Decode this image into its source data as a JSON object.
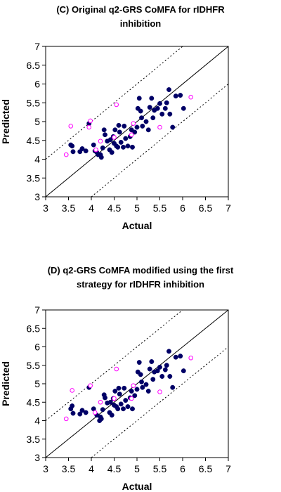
{
  "chart_data": [
    {
      "type": "scatter",
      "title": [
        "(C) Original q2-GRS CoMFA for rIDHFR",
        "inhibition"
      ],
      "xlabel": "Actual",
      "ylabel": "Predicted",
      "xlim": [
        3,
        7
      ],
      "ylim": [
        3,
        7
      ],
      "xticks": [
        "3",
        "3.5",
        "4",
        "4.5",
        "5",
        "5.5",
        "6",
        "6.5",
        "7"
      ],
      "yticks": [
        "3",
        "3.5",
        "4",
        "4.5",
        "5",
        "5.5",
        "6",
        "6.5",
        "7"
      ],
      "grid": false,
      "lines": [
        {
          "style": "solid",
          "points": [
            [
              3,
              3
            ],
            [
              7,
              7
            ]
          ]
        },
        {
          "style": "dotted",
          "points": [
            [
              3,
              4
            ],
            [
              6,
              7
            ]
          ]
        },
        {
          "style": "dotted",
          "points": [
            [
              4,
              3
            ],
            [
              7,
              6
            ]
          ]
        }
      ],
      "series": [
        {
          "marker": "filled-circle",
          "color": "#000066",
          "points": [
            [
              3.55,
              4.38
            ],
            [
              3.58,
              4.35
            ],
            [
              3.6,
              4.2
            ],
            [
              3.75,
              4.2
            ],
            [
              3.8,
              4.28
            ],
            [
              3.88,
              4.22
            ],
            [
              3.95,
              4.95
            ],
            [
              4.05,
              4.38
            ],
            [
              4.08,
              4.22
            ],
            [
              4.12,
              4.18
            ],
            [
              4.15,
              4.12
            ],
            [
              4.2,
              4.12
            ],
            [
              4.22,
              4.05
            ],
            [
              4.25,
              4.3
            ],
            [
              4.28,
              4.78
            ],
            [
              4.3,
              4.65
            ],
            [
              4.35,
              4.48
            ],
            [
              4.4,
              4.25
            ],
            [
              4.42,
              4.52
            ],
            [
              4.45,
              4.18
            ],
            [
              4.48,
              4.6
            ],
            [
              4.5,
              4.42
            ],
            [
              4.52,
              4.78
            ],
            [
              4.55,
              4.35
            ],
            [
              4.58,
              4.32
            ],
            [
              4.6,
              4.9
            ],
            [
              4.62,
              4.72
            ],
            [
              4.65,
              4.45
            ],
            [
              4.7,
              4.32
            ],
            [
              4.72,
              4.88
            ],
            [
              4.75,
              4.55
            ],
            [
              4.8,
              4.35
            ],
            [
              4.85,
              4.6
            ],
            [
              4.88,
              4.78
            ],
            [
              4.9,
              4.32
            ],
            [
              4.95,
              4.72
            ],
            [
              5.0,
              4.85
            ],
            [
              5.02,
              5.35
            ],
            [
              5.05,
              5.62
            ],
            [
              5.08,
              5.28
            ],
            [
              5.1,
              5.1
            ],
            [
              5.12,
              4.88
            ],
            [
              5.2,
              5.0
            ],
            [
              5.25,
              4.78
            ],
            [
              5.28,
              5.38
            ],
            [
              5.32,
              5.62
            ],
            [
              5.35,
              5.1
            ],
            [
              5.38,
              5.3
            ],
            [
              5.45,
              5.35
            ],
            [
              5.5,
              5.48
            ],
            [
              5.55,
              5.2
            ],
            [
              5.62,
              5.35
            ],
            [
              5.65,
              5.5
            ],
            [
              5.7,
              5.85
            ],
            [
              5.72,
              5.2
            ],
            [
              5.78,
              4.85
            ],
            [
              5.85,
              5.68
            ],
            [
              5.95,
              5.7
            ],
            [
              6.02,
              5.35
            ]
          ]
        },
        {
          "marker": "open-circle",
          "color": "#ff00ff",
          "points": [
            [
              3.45,
              4.12
            ],
            [
              3.55,
              4.88
            ],
            [
              3.95,
              4.85
            ],
            [
              3.98,
              5.02
            ],
            [
              4.1,
              4.25
            ],
            [
              4.2,
              4.48
            ],
            [
              4.5,
              4.58
            ],
            [
              4.55,
              5.45
            ],
            [
              4.88,
              4.65
            ],
            [
              4.92,
              4.95
            ],
            [
              5.5,
              4.85
            ],
            [
              6.18,
              5.65
            ]
          ]
        }
      ]
    },
    {
      "type": "scatter",
      "title": [
        "(D) q2-GRS CoMFA modified using the first",
        "strategy for rIDHFR inhibition"
      ],
      "xlabel": "Actual",
      "ylabel": "Predicted",
      "xlim": [
        3,
        7
      ],
      "ylim": [
        3,
        7
      ],
      "xticks": [
        "3",
        "3.5",
        "4",
        "4.5",
        "5",
        "5.5",
        "6",
        "6.5",
        "7"
      ],
      "yticks": [
        "3",
        "3.5",
        "4",
        "4.5",
        "5",
        "5.5",
        "6",
        "6.5",
        "7"
      ],
      "grid": false,
      "lines": [
        {
          "style": "solid",
          "points": [
            [
              3,
              3
            ],
            [
              7,
              7
            ]
          ]
        },
        {
          "style": "dotted",
          "points": [
            [
              3,
              4
            ],
            [
              6,
              7
            ]
          ]
        },
        {
          "style": "dotted",
          "points": [
            [
              4,
              3
            ],
            [
              7,
              6
            ]
          ]
        }
      ],
      "series": [
        {
          "marker": "filled-circle",
          "color": "#000066",
          "points": [
            [
              3.55,
              4.32
            ],
            [
              3.58,
              4.4
            ],
            [
              3.6,
              4.2
            ],
            [
              3.75,
              4.18
            ],
            [
              3.8,
              4.28
            ],
            [
              3.88,
              4.22
            ],
            [
              3.95,
              4.9
            ],
            [
              4.05,
              4.32
            ],
            [
              4.12,
              4.15
            ],
            [
              4.18,
              4.0
            ],
            [
              4.2,
              4.1
            ],
            [
              4.22,
              4.05
            ],
            [
              4.25,
              4.3
            ],
            [
              4.28,
              4.7
            ],
            [
              4.3,
              4.62
            ],
            [
              4.35,
              4.48
            ],
            [
              4.4,
              4.22
            ],
            [
              4.42,
              4.5
            ],
            [
              4.45,
              4.15
            ],
            [
              4.48,
              4.6
            ],
            [
              4.5,
              4.42
            ],
            [
              4.52,
              4.8
            ],
            [
              4.55,
              4.38
            ],
            [
              4.58,
              4.32
            ],
            [
              4.6,
              4.88
            ],
            [
              4.62,
              4.72
            ],
            [
              4.65,
              4.45
            ],
            [
              4.7,
              4.32
            ],
            [
              4.72,
              4.88
            ],
            [
              4.75,
              4.55
            ],
            [
              4.8,
              4.38
            ],
            [
              4.85,
              4.62
            ],
            [
              4.88,
              4.8
            ],
            [
              4.9,
              4.32
            ],
            [
              4.95,
              4.68
            ],
            [
              5.0,
              4.85
            ],
            [
              5.02,
              5.32
            ],
            [
              5.05,
              5.58
            ],
            [
              5.08,
              5.25
            ],
            [
              5.1,
              5.05
            ],
            [
              5.12,
              4.9
            ],
            [
              5.2,
              4.98
            ],
            [
              5.25,
              4.8
            ],
            [
              5.28,
              5.4
            ],
            [
              5.32,
              5.6
            ],
            [
              5.35,
              5.12
            ],
            [
              5.38,
              5.32
            ],
            [
              5.45,
              5.35
            ],
            [
              5.5,
              5.45
            ],
            [
              5.55,
              5.2
            ],
            [
              5.62,
              5.38
            ],
            [
              5.65,
              5.5
            ],
            [
              5.7,
              5.88
            ],
            [
              5.72,
              5.2
            ],
            [
              5.78,
              4.9
            ],
            [
              5.85,
              5.72
            ],
            [
              5.95,
              5.75
            ],
            [
              6.02,
              5.35
            ]
          ]
        },
        {
          "marker": "open-circle",
          "color": "#ff00ff",
          "points": [
            [
              3.45,
              4.05
            ],
            [
              3.58,
              4.82
            ],
            [
              3.98,
              4.95
            ],
            [
              4.08,
              4.22
            ],
            [
              4.2,
              4.5
            ],
            [
              4.5,
              4.6
            ],
            [
              4.55,
              5.4
            ],
            [
              4.88,
              4.6
            ],
            [
              4.92,
              4.95
            ],
            [
              5.5,
              4.78
            ],
            [
              6.18,
              5.7
            ]
          ]
        }
      ]
    }
  ]
}
